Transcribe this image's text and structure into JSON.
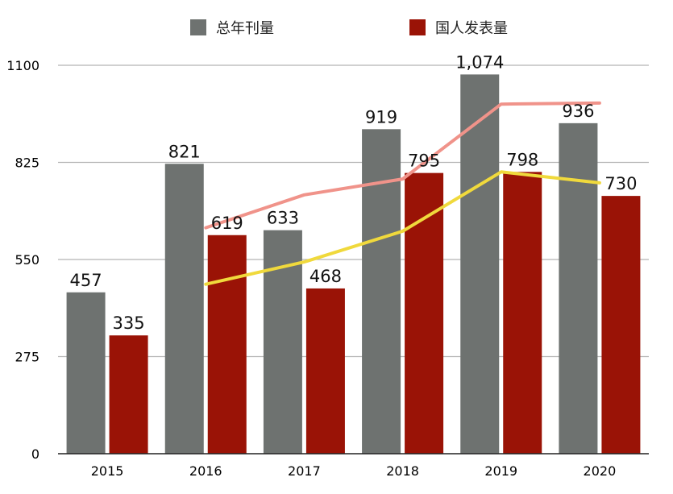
{
  "chart_data": {
    "type": "bar",
    "categories": [
      "2015",
      "2016",
      "2017",
      "2018",
      "2019",
      "2020"
    ],
    "series": [
      {
        "name": "总年刊量",
        "values": [
          457,
          821,
          633,
          919,
          1074,
          936
        ],
        "color": "#6e7270",
        "labels": [
          "457",
          "821",
          "633",
          "919",
          "1,074",
          "936"
        ]
      },
      {
        "name": "国人发表量",
        "values": [
          335,
          619,
          468,
          795,
          798,
          730
        ],
        "color": "#9a1306",
        "labels": [
          "335",
          "619",
          "468",
          "795",
          "798",
          "730"
        ]
      }
    ],
    "trendlines": [
      {
        "color": "#f0938a",
        "x": [
          "2016",
          "2017",
          "2018",
          "2019",
          "2020"
        ],
        "values": [
          640,
          733,
          778,
          990,
          993
        ]
      },
      {
        "color": "#f0d93c",
        "x": [
          "2016",
          "2017",
          "2018",
          "2019",
          "2020"
        ],
        "values": [
          480,
          543,
          630,
          798,
          767
        ]
      }
    ],
    "y_ticks": [
      "0",
      "275",
      "550",
      "825",
      "1100"
    ],
    "ylim": [
      0,
      1100
    ],
    "grid": true,
    "legend_position": "top"
  }
}
